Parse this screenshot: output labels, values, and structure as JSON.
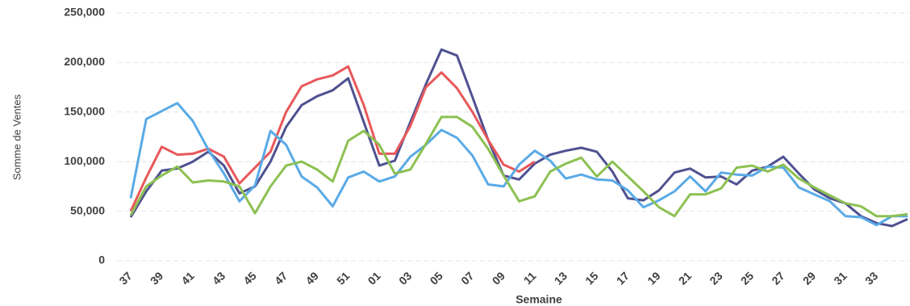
{
  "chart_data": {
    "type": "line",
    "x_label": "Semaine",
    "y_label": "Somme de Ventes",
    "categories": [
      "37",
      null,
      "39",
      null,
      "41",
      null,
      "43",
      null,
      "45",
      null,
      "47",
      null,
      "49",
      null,
      "51",
      null,
      "01",
      null,
      "03",
      null,
      "05",
      null,
      "07",
      null,
      "09",
      null,
      "11",
      null,
      "13",
      null,
      "15",
      null,
      "17",
      null,
      "19",
      null,
      "21",
      null,
      "23",
      null,
      "25",
      null,
      "27",
      null,
      "29",
      null,
      "31",
      null,
      "33",
      null,
      null
    ],
    "series": [
      {
        "color": "#4f5191",
        "values": [
          44000,
          70000,
          91000,
          93000,
          100000,
          110000,
          96000,
          68000,
          75000,
          100000,
          135000,
          157000,
          166000,
          172000,
          184000,
          140000,
          96000,
          101000,
          140000,
          178000,
          213000,
          207000,
          165000,
          122000,
          86000,
          82000,
          98000,
          107000,
          111000,
          114000,
          110000,
          90000,
          63000,
          61000,
          71000,
          89000,
          93000,
          84000,
          85000,
          77000,
          91000,
          95000,
          105000,
          88000,
          72000,
          63000,
          58000,
          45000,
          38000,
          35000,
          42000
        ]
      },
      {
        "color": "#e8585a",
        "values": [
          50000,
          84000,
          115000,
          107000,
          108000,
          113000,
          105000,
          78000,
          94000,
          110000,
          150000,
          176000,
          183000,
          187000,
          196000,
          157000,
          108000,
          108000,
          136000,
          175000,
          190000,
          174000,
          150000,
          122000,
          97000,
          90000,
          100000,
          null,
          null,
          null,
          null,
          null,
          null,
          null,
          null,
          null,
          null,
          null,
          null,
          null,
          null,
          null,
          null,
          null,
          null,
          null,
          null,
          null,
          null,
          null,
          null
        ]
      },
      {
        "color": "#5aaae6",
        "values": [
          63000,
          143000,
          151000,
          159000,
          141000,
          112000,
          88000,
          60000,
          76000,
          131000,
          117000,
          85000,
          74000,
          55000,
          84000,
          90000,
          80000,
          85000,
          105000,
          117000,
          132000,
          124000,
          106000,
          77000,
          75000,
          97000,
          111000,
          101000,
          83000,
          87000,
          82000,
          81000,
          71000,
          54000,
          61000,
          70000,
          85000,
          70000,
          89000,
          87000,
          86000,
          95000,
          94000,
          74000,
          67000,
          60000,
          45000,
          44000,
          36000,
          45000,
          45000
        ]
      },
      {
        "color": "#8cc152",
        "values": [
          46000,
          75000,
          86000,
          95000,
          79000,
          81000,
          80000,
          75000,
          48000,
          75000,
          96000,
          100000,
          92000,
          80000,
          121000,
          131000,
          117000,
          88000,
          92000,
          118000,
          145000,
          145000,
          135000,
          113000,
          86000,
          60000,
          65000,
          90000,
          98000,
          104000,
          85000,
          100000,
          85000,
          70000,
          54000,
          45000,
          67000,
          67000,
          73000,
          94000,
          96000,
          90000,
          97000,
          83000,
          74000,
          66000,
          58000,
          55000,
          45000,
          45000,
          47000
        ]
      }
    ],
    "ylim": [
      0,
      250000
    ],
    "yticks": [
      0,
      {
        "value": 50000,
        "label": "50,000"
      },
      {
        "value": 100000,
        "label": "100,000"
      },
      {
        "value": 150000,
        "label": "150,000"
      },
      {
        "value": 200000,
        "label": "200,000"
      },
      {
        "value": 250000,
        "label": "250,000"
      }
    ],
    "grid": true
  }
}
